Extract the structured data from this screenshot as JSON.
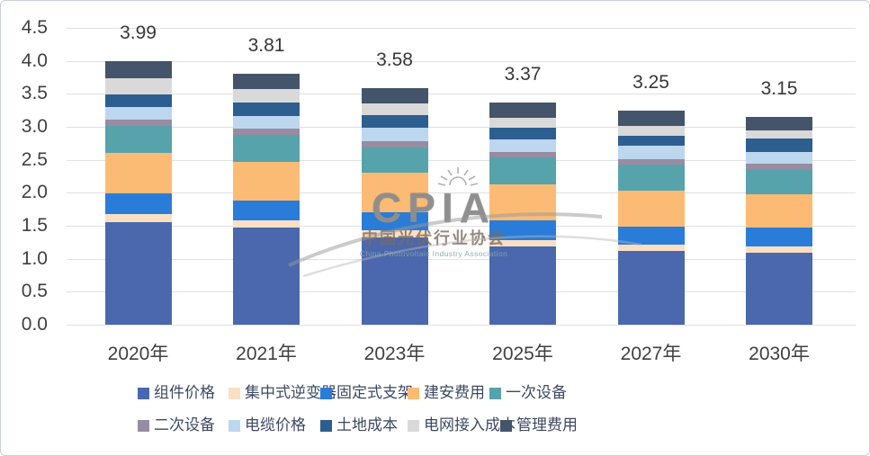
{
  "chart_data": {
    "type": "bar",
    "stacked": true,
    "categories": [
      "2020年",
      "2021年",
      "2023年",
      "2025年",
      "2027年",
      "2030年"
    ],
    "totals": [
      "3.99",
      "3.81",
      "3.58",
      "3.37",
      "3.25",
      "3.15"
    ],
    "yticks": [
      "4.5",
      "4.0",
      "3.5",
      "3.0",
      "2.5",
      "2.0",
      "1.5",
      "1.0",
      "0.5",
      "0.0"
    ],
    "ylim": [
      0,
      4.5
    ],
    "grid": "horizontal",
    "legend_position": "bottom",
    "series": [
      {
        "name": "组件价格",
        "color": "#4B68AE",
        "values": [
          1.55,
          1.47,
          1.32,
          1.18,
          1.12,
          1.09
        ]
      },
      {
        "name": "集中式逆变器",
        "color": "#FADFC3",
        "values": [
          0.13,
          0.11,
          0.11,
          0.1,
          0.09,
          0.09
        ]
      },
      {
        "name": "固定式支架",
        "color": "#2A7CD9",
        "values": [
          0.31,
          0.3,
          0.28,
          0.3,
          0.27,
          0.29
        ]
      },
      {
        "name": "建安费用",
        "color": "#FCBB75",
        "values": [
          0.62,
          0.59,
          0.59,
          0.55,
          0.55,
          0.51
        ]
      },
      {
        "name": "一次设备",
        "color": "#57A3AB",
        "values": [
          0.41,
          0.41,
          0.39,
          0.4,
          0.4,
          0.37
        ]
      },
      {
        "name": "二次设备",
        "color": "#988CA3",
        "values": [
          0.09,
          0.09,
          0.09,
          0.09,
          0.08,
          0.09
        ]
      },
      {
        "name": "电缆价格",
        "color": "#BDD7EE",
        "values": [
          0.19,
          0.2,
          0.2,
          0.19,
          0.2,
          0.18
        ]
      },
      {
        "name": "土地成本",
        "color": "#2D5E90",
        "values": [
          0.19,
          0.2,
          0.2,
          0.18,
          0.16,
          0.2
        ]
      },
      {
        "name": "电网接入成本",
        "color": "#D9D9D9",
        "values": [
          0.24,
          0.2,
          0.17,
          0.14,
          0.15,
          0.12
        ]
      },
      {
        "name": "管理费用",
        "color": "#44546A",
        "values": [
          0.26,
          0.24,
          0.23,
          0.24,
          0.23,
          0.21
        ]
      }
    ]
  },
  "watermark": {
    "acronym": "CPIA",
    "name_cn": "中国光伏行业协会",
    "name_en": "China Photovoltaic Industry Association"
  }
}
